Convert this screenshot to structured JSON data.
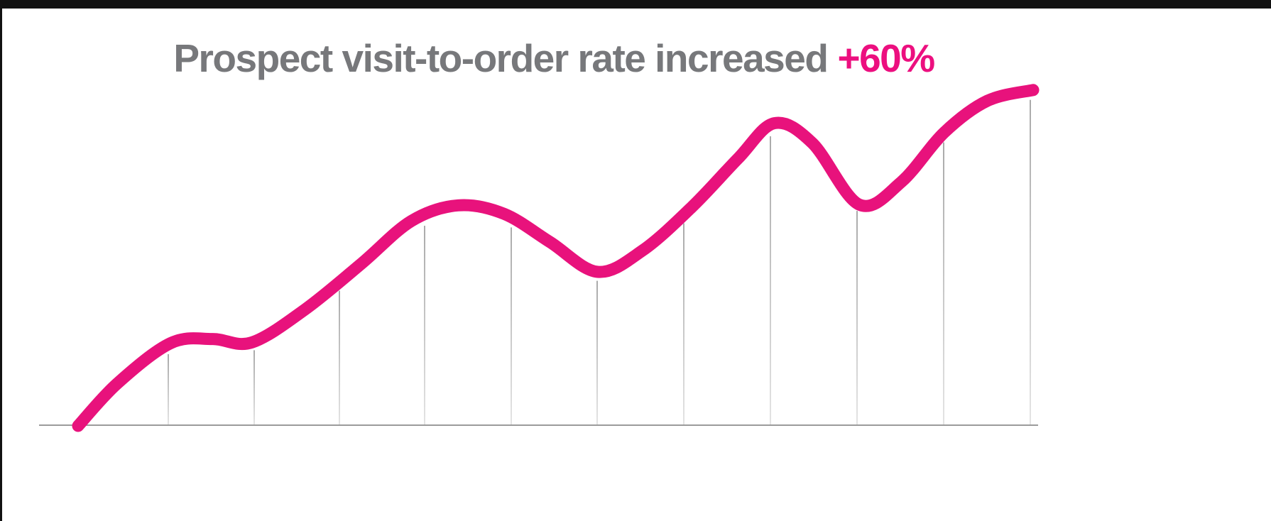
{
  "title": {
    "text": "Prospect visit-to-order rate increased",
    "highlight": "+60%",
    "text_color": "#77787b",
    "highlight_color": "#ec0f7f"
  },
  "chart_data": {
    "type": "line",
    "title": "Prospect visit-to-order rate increased +60%",
    "annotation": "+60%",
    "axes_labeled": false,
    "xlabel": "",
    "ylabel": "",
    "grid": "vertical-only",
    "line_color": "#e8127c",
    "line_width": 17,
    "baseline_color": "#9b9b9b",
    "gridline_color_top": "#aaaaaa",
    "gridline_color_bottom": "#e4e4e4",
    "series": [
      {
        "name": "prospect-visit-to-order-rate",
        "x_pct": [
          0,
          4.1,
          9.7,
          14.1,
          18.2,
          23.8,
          29.7,
          34.9,
          39.8,
          44.6,
          49.4,
          54.4,
          59.1,
          64.3,
          69.1,
          72.9,
          76.9,
          81.8,
          86.2,
          90.7,
          95.2,
          100
        ],
        "y_pct": [
          0,
          12.5,
          24.4,
          25.6,
          24.6,
          34.4,
          47.9,
          60.4,
          65.0,
          62.5,
          54.2,
          45.4,
          51.7,
          64.6,
          78.8,
          89.2,
          83.3,
          65.2,
          71.9,
          86.5,
          95.8,
          99.0
        ]
      }
    ],
    "gridline_x_pct": [
      9.44,
      18.44,
      27.36,
      36.28,
      45.35,
      54.35,
      63.42,
      72.49,
      81.56,
      90.63,
      99.7
    ]
  }
}
